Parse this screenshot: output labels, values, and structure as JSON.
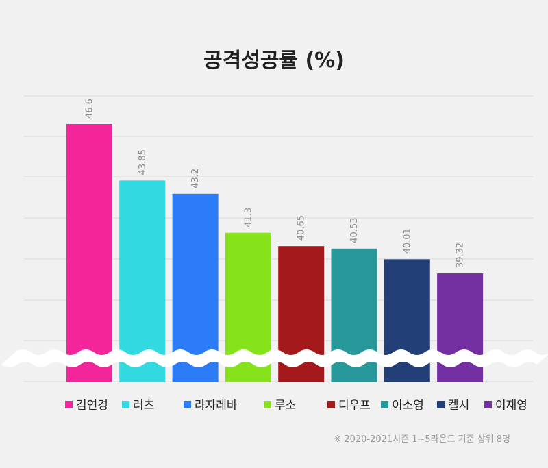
{
  "chart_data": {
    "type": "bar",
    "title": "공격성공률 (%)",
    "categories": [
      "김연경",
      "러츠",
      "라자레바",
      "루소",
      "디우프",
      "이소영",
      "켈시",
      "이재영"
    ],
    "values": [
      46.6,
      43.85,
      43.2,
      41.3,
      40.65,
      40.53,
      40.01,
      39.32
    ],
    "value_labels": [
      "46.6",
      "43.85",
      "43.2",
      "41.3",
      "40.65",
      "40.53",
      "40.01",
      "39.32"
    ],
    "colors": [
      "#f2259a",
      "#33d9e1",
      "#2b7cf6",
      "#86e21a",
      "#a4191c",
      "#27999b",
      "#233f77",
      "#7430a2"
    ],
    "ylim": [
      37,
      49
    ],
    "axis_break": true,
    "grid": true,
    "legend_position": "bottom",
    "footnote": "※ 2020-2021시즌 1~5라운드 기준 상위 8명"
  }
}
